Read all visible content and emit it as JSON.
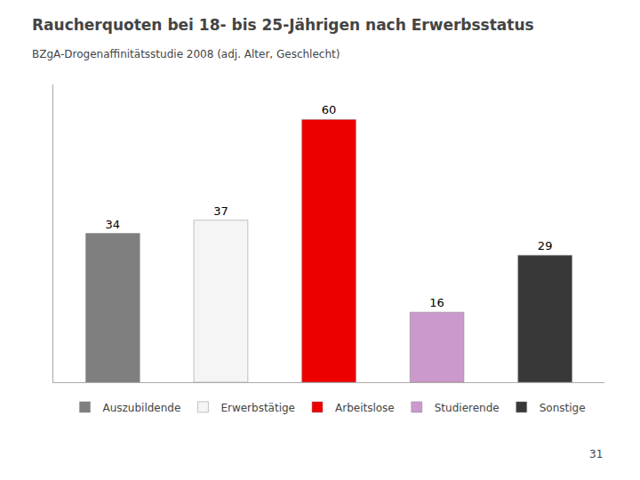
{
  "chart_data": {
    "type": "bar",
    "title": "Raucherquoten bei 18- bis 25-Jährigen nach Erwerbsstatus",
    "subtitle": "BZgA-Drogenaffinitätsstudie 2008 (adj. Alter, Geschlecht)",
    "categories": [
      "Auszubildende",
      "Erwerbstätige",
      "Arbeitslose",
      "Studierende",
      "Sonstige"
    ],
    "values": [
      34,
      37,
      60,
      16,
      29
    ],
    "colors": [
      "#7f7f7f",
      "#f5f5f5",
      "#ee0000",
      "#cc99cc",
      "#383838"
    ],
    "ylim": [
      0,
      68
    ],
    "grid": false,
    "tick_labels": false,
    "data_labels": true,
    "legend": "bottom",
    "annotations": [
      {
        "text": "31"
      }
    ]
  }
}
